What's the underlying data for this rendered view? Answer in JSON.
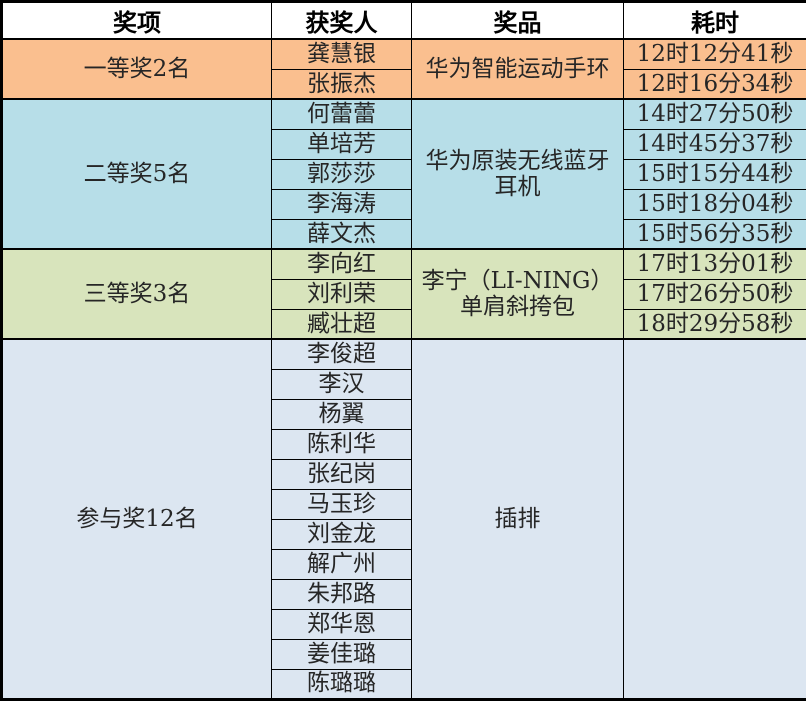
{
  "chart_data": {
    "type": "table",
    "columns": [
      "奖项",
      "获奖人",
      "奖品",
      "耗时"
    ],
    "sections": [
      {
        "category": "一等奖2名",
        "color": "#FABF8F",
        "prize": "华为智能运动手环",
        "winners": [
          "龚慧银",
          "张振杰"
        ],
        "times": [
          "12时12分41秒",
          "12时16分34秒"
        ]
      },
      {
        "category": "二等奖5名",
        "color": "#B7DEE8",
        "prize": "华为原装无线蓝牙耳机",
        "winners": [
          "何蕾蕾",
          "单培芳",
          "郭莎莎",
          "李海涛",
          "薛文杰"
        ],
        "times": [
          "14时27分50秒",
          "14时45分37秒",
          "15时15分44秒",
          "15时18分04秒",
          "15时56分35秒"
        ]
      },
      {
        "category": "三等奖3名",
        "color": "#D8E4BC",
        "prize": "李宁（LI-NING）单肩斜挎包",
        "winners": [
          "李向红",
          "刘利荣",
          "臧壮超"
        ],
        "times": [
          "17时13分01秒",
          "17时26分50秒",
          "18时29分58秒"
        ]
      },
      {
        "category": "参与奖12名",
        "color": "#DCE6F1",
        "prize": "插排",
        "winners": [
          "李俊超",
          "李汉",
          "杨翼",
          "陈利华",
          "张纪岗",
          "马玉珍",
          "刘金龙",
          "解广州",
          "朱邦路",
          "郑华恩",
          "姜佳璐",
          "陈璐璐"
        ],
        "times": []
      }
    ]
  },
  "colors": {
    "header_bg": "#FFFFFF",
    "header_text": "#000000",
    "body_text": "#262626",
    "border": "#000000"
  }
}
